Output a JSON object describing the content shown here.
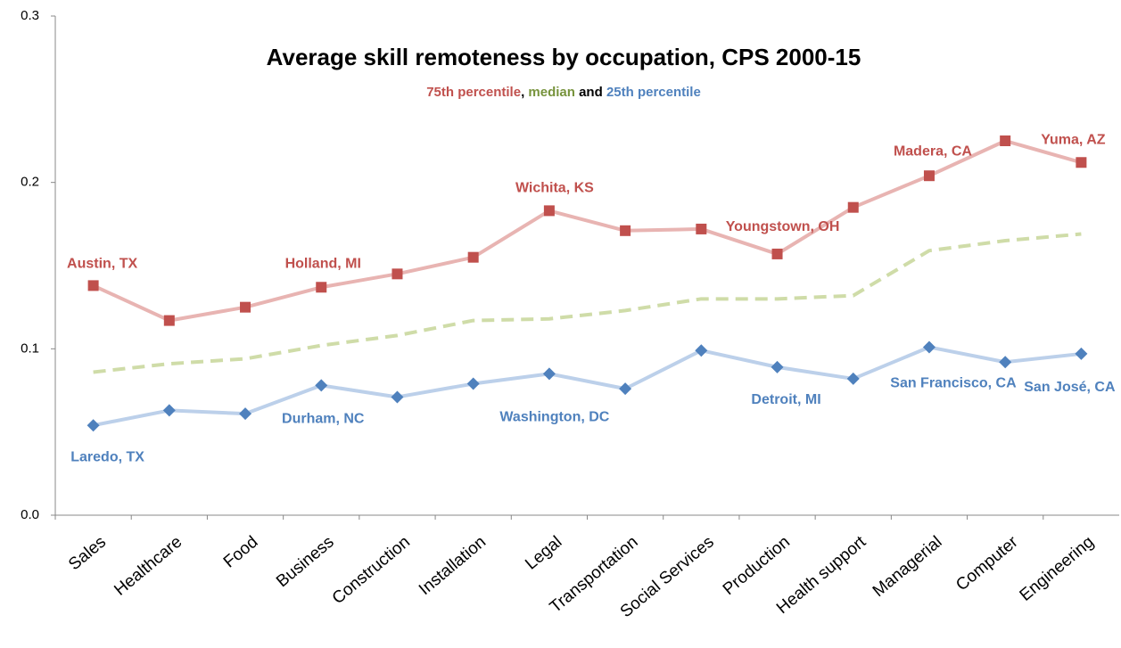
{
  "chart_data": {
    "type": "line",
    "title": "Average skill remoteness by occupation, CPS 2000-15",
    "legend_separators": [
      ", ",
      " and "
    ],
    "categories": [
      "Sales",
      "Healthcare",
      "Food",
      "Business",
      "Construction",
      "Installation",
      "Legal",
      "Transportation",
      "Social Services",
      "Production",
      "Health support",
      "Managerial",
      "Computer",
      "Engineering"
    ],
    "series": [
      {
        "name": "75th percentile",
        "color": "#c0504d",
        "line_color": "#e8b4b2",
        "marker": "square",
        "dashed": false,
        "values": [
          0.138,
          0.117,
          0.125,
          0.137,
          0.145,
          0.155,
          0.183,
          0.171,
          0.172,
          0.157,
          0.185,
          0.204,
          0.225,
          0.212
        ],
        "point_labels": [
          "Austin, TX",
          null,
          null,
          "Holland, MI",
          null,
          null,
          "Wichita, KS",
          null,
          null,
          "Youngstown, OH",
          null,
          "Madera, CA",
          null,
          "Yuma, AZ"
        ]
      },
      {
        "name": "median",
        "color": "#77933c",
        "line_color": "#cfdca8",
        "marker": null,
        "dashed": true,
        "values": [
          0.086,
          0.091,
          0.094,
          0.102,
          0.108,
          0.117,
          0.118,
          0.123,
          0.13,
          0.13,
          0.132,
          0.159,
          0.165,
          0.169
        ]
      },
      {
        "name": "25th percentile",
        "color": "#4f81bd",
        "line_color": "#bcd0ea",
        "marker": "diamond",
        "dashed": false,
        "values": [
          0.054,
          0.063,
          0.061,
          0.078,
          0.071,
          0.079,
          0.085,
          0.076,
          0.099,
          0.089,
          0.082,
          0.101,
          0.092,
          0.097
        ],
        "point_labels": [
          "Laredo, TX",
          null,
          null,
          "Durham, NC",
          null,
          null,
          "Washington, DC",
          null,
          null,
          "Detroit, MI",
          null,
          "San Francisco, CA",
          null,
          "San José, CA"
        ]
      }
    ],
    "ylim": [
      0,
      0.3
    ],
    "yticks": [
      {
        "value": 0,
        "label": "0.0"
      },
      0.1,
      0.2,
      0.3
    ],
    "grid": false
  }
}
